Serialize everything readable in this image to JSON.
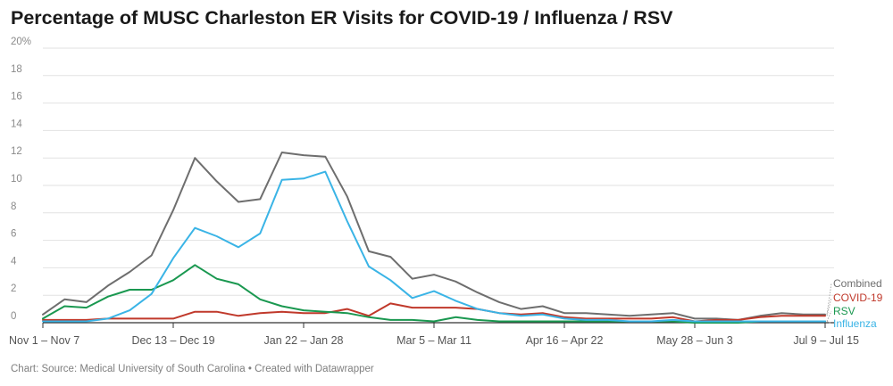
{
  "header": {
    "title": "Percentage of MUSC Charleston ER Visits for COVID-19 / Influenza / RSV"
  },
  "footer": {
    "text": "Chart: Source: Medical University of South Carolina • Created with Datawrapper"
  },
  "chart_data": {
    "type": "line",
    "title": "Percentage of MUSC Charleston ER Visits for COVID-19 / Influenza / RSV",
    "xlabel": "",
    "ylabel": "",
    "ylim": [
      0,
      20
    ],
    "yticks": [
      0,
      2,
      4,
      6,
      8,
      10,
      12,
      14,
      16,
      18,
      20
    ],
    "ytick_labels": [
      "0",
      "2",
      "4",
      "6",
      "8",
      "10",
      "12",
      "14",
      "16",
      "18",
      "20%"
    ],
    "x_tick_labels": [
      {
        "index": 0,
        "label": "Nov 1 – Nov 7"
      },
      {
        "index": 6,
        "label": "Dec 13 – Dec 19"
      },
      {
        "index": 12,
        "label": "Jan 22 – Jan 28"
      },
      {
        "index": 18,
        "label": "Mar 5 – Mar 11"
      },
      {
        "index": 24,
        "label": "Apr 16 – Apr 22"
      },
      {
        "index": 30,
        "label": "May 28 – Jun 3"
      },
      {
        "index": 36,
        "label": "Jul 9 – Jul 15"
      }
    ],
    "grid": true,
    "legend": "inline-right",
    "series": [
      {
        "name": "Combined",
        "color": "#6e6e6e",
        "values": [
          0.6,
          1.7,
          1.5,
          2.7,
          3.7,
          4.9,
          8.2,
          12.0,
          10.3,
          8.8,
          9.0,
          12.4,
          12.2,
          12.1,
          9.2,
          5.2,
          4.8,
          3.2,
          3.5,
          3.0,
          2.2,
          1.5,
          1.0,
          1.2,
          0.7,
          0.7,
          0.6,
          0.5,
          0.6,
          0.7,
          0.3,
          0.3,
          0.2,
          0.5,
          0.7,
          0.6,
          0.6
        ]
      },
      {
        "name": "COVID-19",
        "color": "#c0392b",
        "values": [
          0.2,
          0.2,
          0.2,
          0.3,
          0.3,
          0.3,
          0.3,
          0.8,
          0.8,
          0.5,
          0.7,
          0.8,
          0.7,
          0.7,
          1.0,
          0.5,
          1.4,
          1.1,
          1.1,
          1.1,
          1.0,
          0.7,
          0.6,
          0.7,
          0.4,
          0.3,
          0.3,
          0.3,
          0.3,
          0.4,
          0.1,
          0.2,
          0.2,
          0.4,
          0.5,
          0.5,
          0.5
        ]
      },
      {
        "name": "RSV",
        "color": "#1a9850",
        "values": [
          0.3,
          1.2,
          1.1,
          1.9,
          2.4,
          2.4,
          3.1,
          4.2,
          3.2,
          2.8,
          1.7,
          1.2,
          0.9,
          0.8,
          0.7,
          0.4,
          0.2,
          0.2,
          0.1,
          0.4,
          0.2,
          0.1,
          0.1,
          0.1,
          0.1,
          0.1,
          0.1,
          0.1,
          0.1,
          0.1,
          0.0,
          0.0,
          0.0,
          0.1,
          0.1,
          0.1,
          0.1
        ]
      },
      {
        "name": "Influenza",
        "color": "#3ab4e6",
        "values": [
          0.1,
          0.1,
          0.1,
          0.3,
          0.9,
          2.1,
          4.7,
          6.9,
          6.3,
          5.5,
          6.5,
          10.4,
          10.5,
          11.0,
          7.4,
          4.1,
          3.1,
          1.8,
          2.3,
          1.6,
          1.0,
          0.7,
          0.5,
          0.6,
          0.3,
          0.2,
          0.2,
          0.1,
          0.1,
          0.2,
          0.1,
          0.1,
          0.1,
          0.1,
          0.1,
          0.1,
          0.1
        ]
      }
    ]
  }
}
